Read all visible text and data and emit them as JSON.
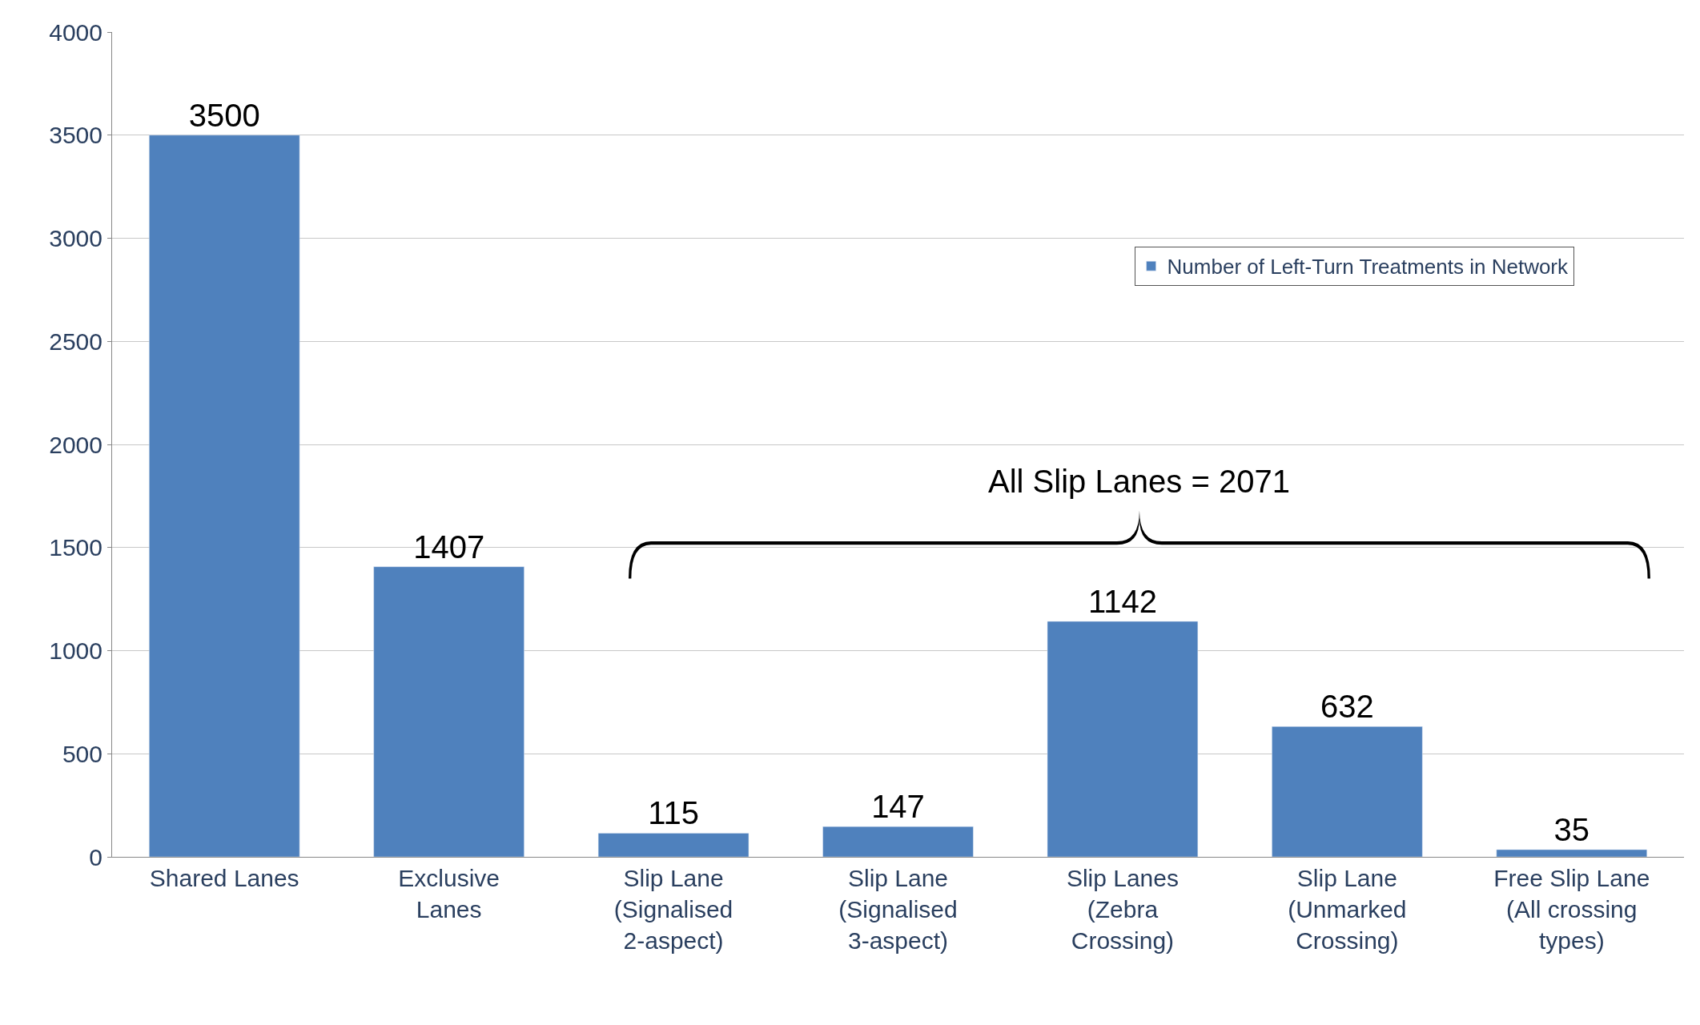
{
  "chart_data": {
    "type": "bar",
    "categories": [
      "Shared Lanes",
      "Exclusive Lanes",
      "Slip Lane (Signalised 2-aspect)",
      "Slip Lane (Signalised 3-aspect)",
      "Slip Lanes (Zebra Crossing)",
      "Slip Lane (Unmarked Crossing)",
      "Free Slip Lane (All crossing types)"
    ],
    "series": [
      {
        "name": "Number of Left-Turn Treatments in Network",
        "color": "#4f81bd",
        "values": [
          3500,
          1407,
          115,
          147,
          1142,
          632,
          35
        ]
      }
    ],
    "ylim": [
      0,
      4000
    ],
    "yticks": [
      0,
      500,
      1000,
      1500,
      2000,
      2500,
      3000,
      3500,
      4000
    ],
    "grid": "y",
    "legend": "top right",
    "data_labels": true,
    "annotations": [
      "All Slip Lanes = 2071"
    ]
  }
}
